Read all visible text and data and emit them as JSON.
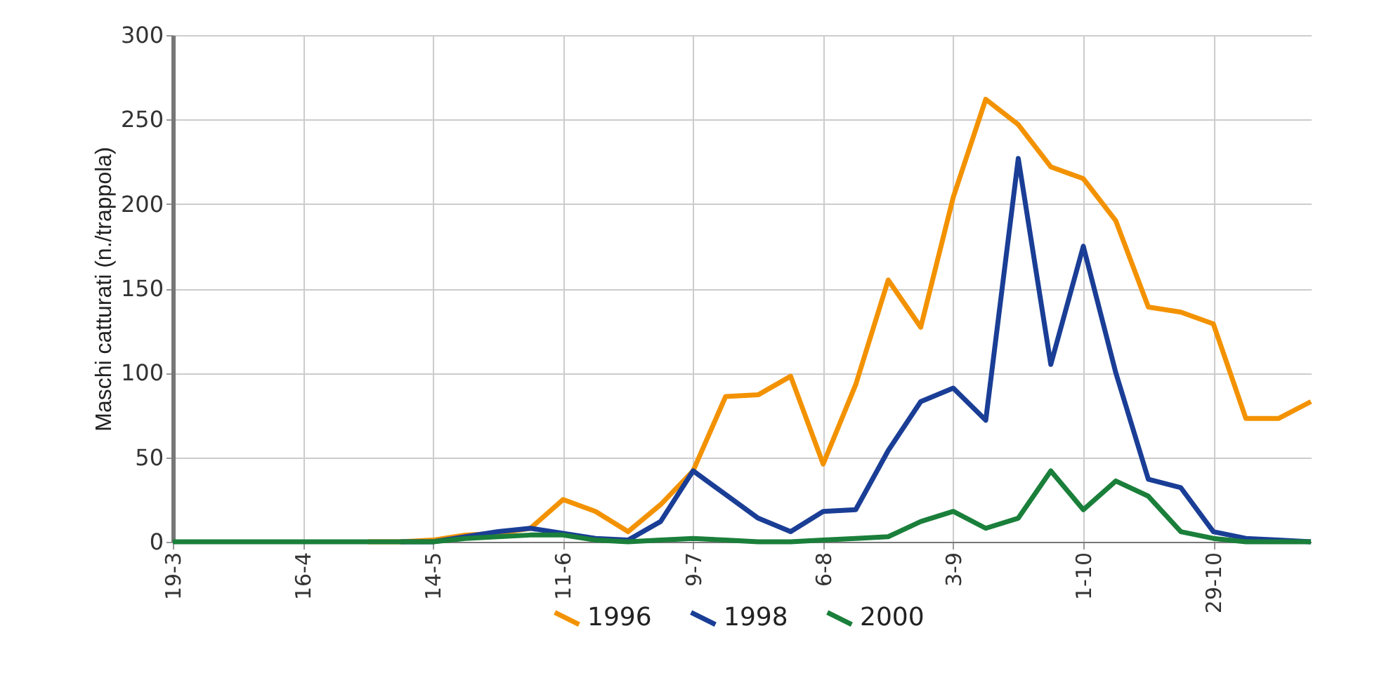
{
  "chart_data": {
    "type": "line",
    "ylabel": "Maschi catturati (n./trappola)",
    "categories": [
      "19-3",
      null,
      null,
      null,
      "16-4",
      null,
      null,
      null,
      "14-5",
      null,
      null,
      null,
      "11-6",
      null,
      null,
      null,
      "9-7",
      null,
      null,
      null,
      "6-8",
      null,
      null,
      null,
      "3-9",
      null,
      null,
      null,
      "1-10",
      null,
      null,
      null,
      "29-10",
      null,
      null,
      null
    ],
    "series": [
      {
        "name": "1996",
        "color": "#f39200",
        "values": [
          null,
          null,
          null,
          null,
          null,
          null,
          0,
          0,
          1,
          4,
          5,
          8,
          25,
          18,
          6,
          22,
          42,
          86,
          87,
          98,
          46,
          93,
          155,
          127,
          204,
          262,
          247,
          222,
          215,
          190,
          139,
          136,
          129,
          73,
          73,
          83
        ]
      },
      {
        "name": "1998",
        "color": "#1a3e96",
        "values": [
          null,
          null,
          null,
          null,
          null,
          null,
          null,
          0,
          0,
          3,
          6,
          8,
          5,
          2,
          1,
          12,
          42,
          28,
          14,
          6,
          18,
          19,
          54,
          83,
          91,
          72,
          227,
          105,
          175,
          100,
          37,
          32,
          6,
          2,
          1,
          0
        ]
      },
      {
        "name": "2000",
        "color": "#1a7f3a",
        "values": [
          0,
          0,
          0,
          0,
          0,
          0,
          0,
          0,
          0,
          2,
          3,
          4,
          4,
          1,
          0,
          1,
          2,
          1,
          0,
          0,
          1,
          2,
          3,
          12,
          18,
          8,
          14,
          42,
          19,
          36,
          27,
          6,
          2,
          0,
          0,
          0
        ]
      }
    ],
    "ylim": [
      0,
      300
    ],
    "yticks": [
      0,
      50,
      100,
      150,
      200,
      250,
      300
    ],
    "grid": true,
    "legend": "bottom",
    "marker": "none",
    "line_style": "solid"
  }
}
